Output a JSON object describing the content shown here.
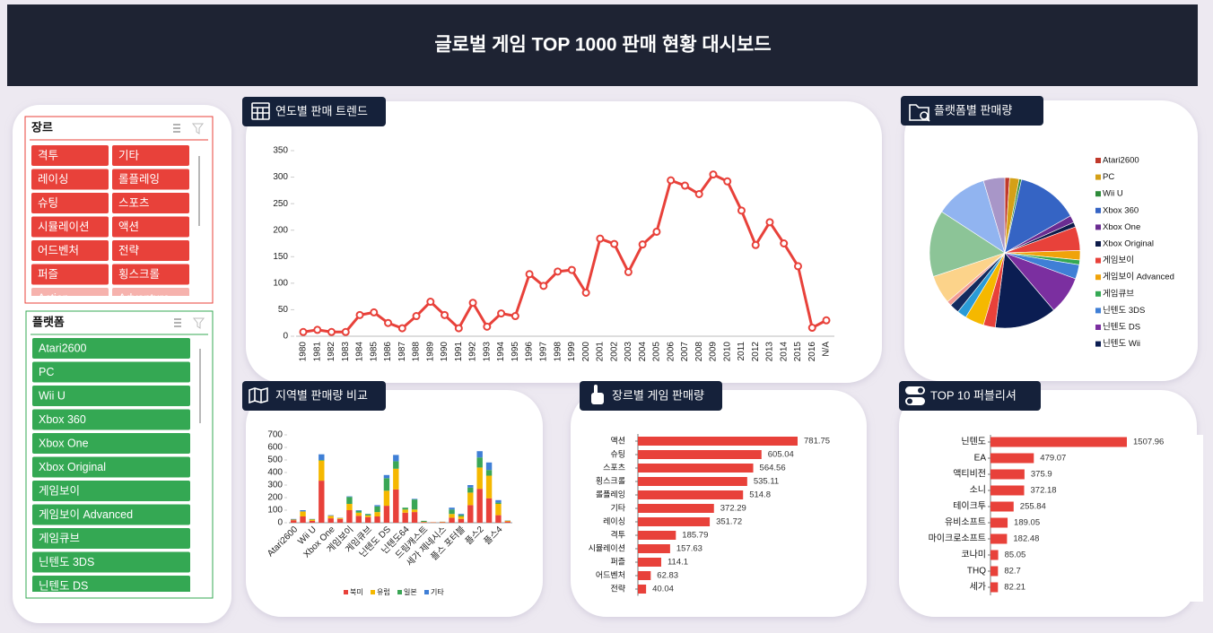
{
  "title": "글로벌 게임 TOP 1000 판매 현황 대시보드",
  "slicers": [
    {
      "title": "장르",
      "color": "#e8413a",
      "dim_color": "#f6b2ad",
      "border": "#e8413a",
      "items": [
        {
          "label": "격투",
          "selected": true
        },
        {
          "label": "기타",
          "selected": true
        },
        {
          "label": "레이싱",
          "selected": true
        },
        {
          "label": "롤플레잉",
          "selected": true
        },
        {
          "label": "슈팅",
          "selected": true
        },
        {
          "label": "스포츠",
          "selected": true
        },
        {
          "label": "시뮬레이션",
          "selected": true
        },
        {
          "label": "액션",
          "selected": true
        },
        {
          "label": "어드벤처",
          "selected": true
        },
        {
          "label": "전략",
          "selected": true
        },
        {
          "label": "퍼즐",
          "selected": true
        },
        {
          "label": "횡스크롤",
          "selected": true
        },
        {
          "label": "Action",
          "selected": false
        },
        {
          "label": "Adventure",
          "selected": false
        }
      ]
    },
    {
      "title": "플랫폼",
      "color": "#34a853",
      "dim_color": "#a8dcb6",
      "border": "#34a853",
      "items": [
        {
          "label": "Atari2600",
          "selected": true
        },
        {
          "label": "PC",
          "selected": true
        },
        {
          "label": "Wii U",
          "selected": true
        },
        {
          "label": "Xbox 360",
          "selected": true
        },
        {
          "label": "Xbox One",
          "selected": true
        },
        {
          "label": "Xbox Original",
          "selected": true
        },
        {
          "label": "게임보이",
          "selected": true
        },
        {
          "label": "게임보이 Advanced",
          "selected": true
        },
        {
          "label": "게임큐브",
          "selected": true
        },
        {
          "label": "닌텐도 3DS",
          "selected": true
        },
        {
          "label": "닌텐도 DS",
          "selected": true
        }
      ]
    }
  ],
  "chart_data": [
    {
      "type": "line",
      "title": "연도별 판매 트렌드",
      "color": "#e8413a",
      "categories": [
        "1980",
        "1981",
        "1982",
        "1983",
        "1984",
        "1985",
        "1986",
        "1987",
        "1988",
        "1989",
        "1990",
        "1991",
        "1992",
        "1993",
        "1994",
        "1995",
        "1996",
        "1997",
        "1998",
        "1999",
        "2000",
        "2001",
        "2002",
        "2003",
        "2004",
        "2005",
        "2006",
        "2007",
        "2008",
        "2009",
        "2010",
        "2011",
        "2012",
        "2013",
        "2014",
        "2015",
        "2016",
        "N/A"
      ],
      "values": [
        8,
        12,
        8,
        8,
        40,
        45,
        25,
        15,
        38,
        65,
        40,
        15,
        63,
        18,
        43,
        38,
        117,
        95,
        122,
        125,
        82,
        184,
        174,
        121,
        173,
        197,
        294,
        284,
        268,
        305,
        292,
        237,
        172,
        215,
        175,
        132,
        16,
        30
      ],
      "ylim": [
        0,
        350
      ],
      "yticks": [
        0,
        50,
        100,
        150,
        200,
        250,
        300,
        350
      ]
    },
    {
      "type": "pie",
      "title": "플랫폼별 판매량",
      "categories": [
        "Atari2600",
        "PC",
        "Wii U",
        "Xbox 360",
        "Xbox One",
        "Xbox Original",
        "게임보이",
        "게임보이 Advanced",
        "게임큐브",
        "닌텐도 3DS",
        "닌텐도 DS",
        "닌텐도 Wii",
        null,
        null,
        null,
        null,
        null,
        null,
        null,
        null,
        null
      ],
      "values": [
        1,
        2,
        0.5,
        13,
        1.5,
        1,
        5,
        2,
        1,
        3,
        8,
        13,
        2.5,
        4,
        2,
        2,
        1,
        6,
        14,
        11,
        4.5
      ],
      "colors": [
        "#c0392b",
        "#d4a017",
        "#2e8b3a",
        "#3564c4",
        "#6a2c91",
        "#0d1b4a",
        "#e8413a",
        "#f0a30a",
        "#34a853",
        "#3f7fd6",
        "#7b2fa0",
        "#0b1d52",
        "#e8413a",
        "#f5b800",
        "#2a9bd6",
        "#132a5e",
        "#f29b93",
        "#fcd38a",
        "#8cc497",
        "#91b4f0",
        "#a896c8"
      ]
    },
    {
      "type": "stacked-bar",
      "title": "지역별 판매량 비교",
      "categories": [
        "Atari2600",
        null,
        "Wii U",
        null,
        "Xbox One",
        null,
        "게임보이",
        null,
        "게임큐브",
        null,
        "닌텐도 DS",
        null,
        "닌텐도64",
        null,
        "드림캐스트",
        null,
        "세가 제네시스",
        null,
        "플스 포터블",
        null,
        "플스2",
        null,
        "플스4",
        null
      ],
      "series": [
        {
          "name": "북미",
          "color": "#e8413a",
          "values": [
            20,
            50,
            15,
            335,
            35,
            30,
            100,
            55,
            45,
            50,
            135,
            265,
            80,
            85,
            5,
            3,
            5,
            40,
            30,
            140,
            270,
            195,
            60,
            10
          ]
        },
        {
          "name": "유럽",
          "color": "#f5b800",
          "values": [
            5,
            40,
            10,
            160,
            20,
            8,
            50,
            25,
            13,
            35,
            120,
            165,
            25,
            20,
            2,
            1,
            2,
            30,
            20,
            100,
            170,
            180,
            90,
            5
          ]
        },
        {
          "name": "일본",
          "color": "#3aa655",
          "values": [
            0,
            0,
            3,
            5,
            0,
            0,
            55,
            15,
            10,
            45,
            100,
            60,
            15,
            80,
            8,
            0,
            1,
            35,
            12,
            40,
            80,
            45,
            10,
            2
          ]
        },
        {
          "name": "기타",
          "color": "#3f7fd6",
          "values": [
            5,
            10,
            2,
            45,
            5,
            2,
            5,
            5,
            2,
            10,
            25,
            50,
            0,
            5,
            0,
            0,
            0,
            15,
            8,
            20,
            50,
            60,
            20,
            1
          ]
        }
      ],
      "ylim": [
        0,
        700
      ],
      "yticks": [
        0,
        100,
        200,
        300,
        400,
        500,
        600,
        700
      ]
    },
    {
      "type": "hbar",
      "title": "장르별 게임 판매량",
      "color": "#e8413a",
      "categories": [
        "액션",
        "슈팅",
        "스포츠",
        "횡스크롤",
        "롤플레잉",
        "기타",
        "레이싱",
        "격투",
        "시뮬레이션",
        "퍼즐",
        "어드벤처",
        "전략"
      ],
      "values": [
        781.75,
        605.04,
        564.56,
        535.11,
        514.8,
        372.29,
        351.72,
        185.79,
        157.63,
        114.1,
        62.83,
        40.04
      ]
    },
    {
      "type": "hbar",
      "title": "TOP 10 퍼블리셔",
      "color": "#e8413a",
      "categories": [
        "닌텐도",
        "EA",
        "액티비전",
        "소니",
        "테이크투",
        "유비소프트",
        "마이크로소프트",
        "코나미",
        "THQ",
        "세가"
      ],
      "values": [
        1507.96,
        479.07,
        375.9,
        372.18,
        255.84,
        189.05,
        182.48,
        85.05,
        82.7,
        82.21
      ]
    }
  ]
}
